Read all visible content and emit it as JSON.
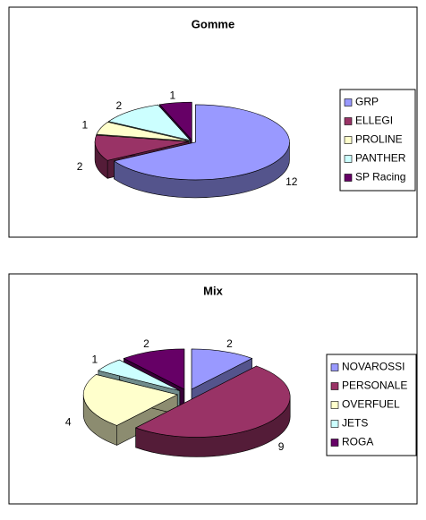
{
  "chart_data": [
    {
      "type": "pie",
      "title": "Gomme",
      "categories": [
        "GRP",
        "ELLEGI",
        "PROLINE",
        "PANTHER",
        "SP Racing"
      ],
      "values": [
        12,
        2,
        1,
        2,
        1
      ],
      "colors": [
        "#9999ff",
        "#993366",
        "#ffffcc",
        "#ccffff",
        "#660066"
      ],
      "legend": "right"
    },
    {
      "type": "pie",
      "title": "Mix",
      "categories": [
        "NOVAROSSI",
        "PERSONALE",
        "OVERFUEL",
        "JETS",
        "ROGA"
      ],
      "values": [
        2,
        9,
        4,
        1,
        2
      ],
      "colors": [
        "#9999ff",
        "#993366",
        "#ffffcc",
        "#ccffff",
        "#660066"
      ],
      "legend": "right"
    }
  ]
}
